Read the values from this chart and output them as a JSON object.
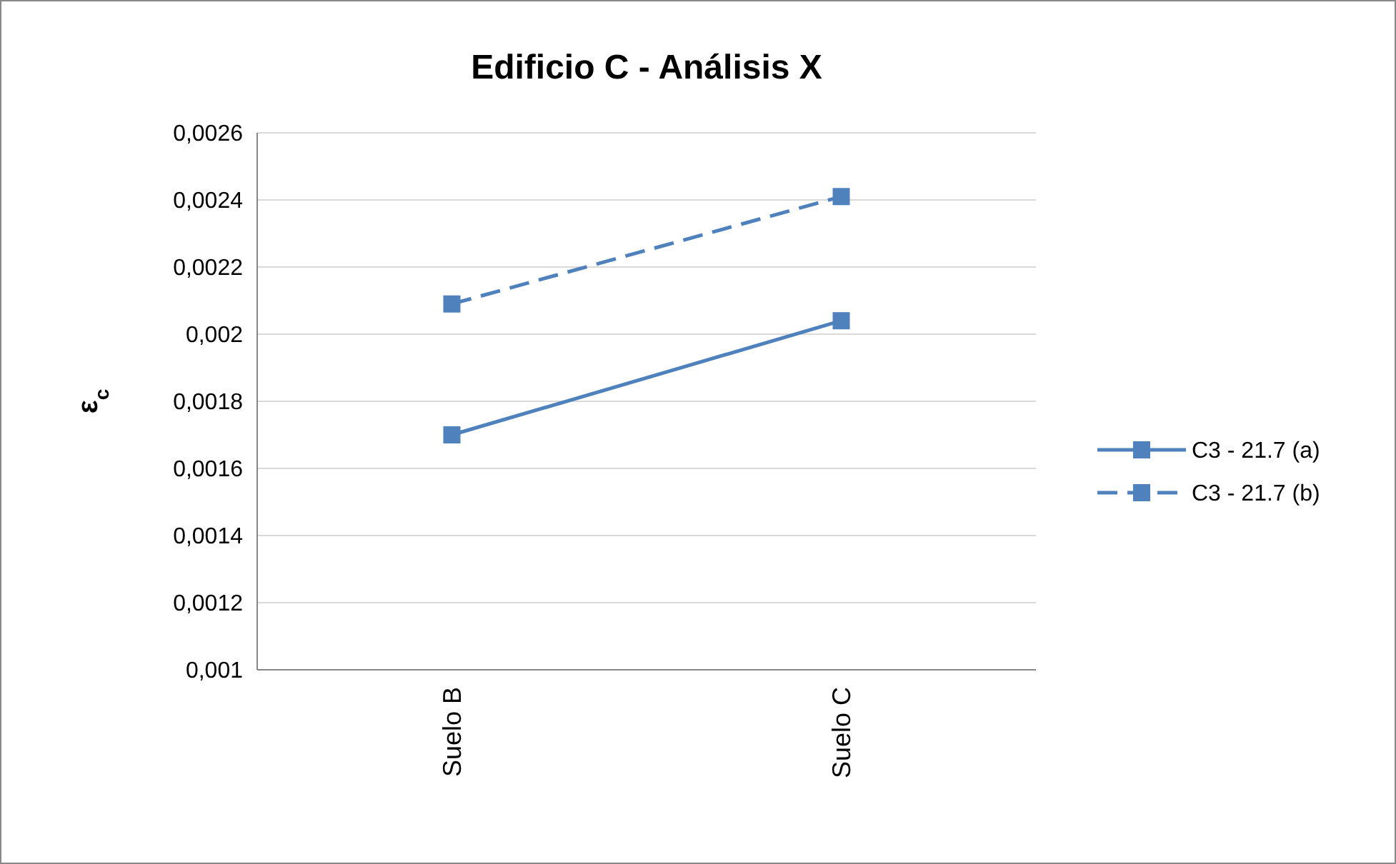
{
  "chart_data": {
    "type": "line",
    "title": "Edificio C - Análisis X",
    "ylabel": "ε$_{c}$",
    "categories": [
      "Suelo B",
      "Suelo C"
    ],
    "series": [
      {
        "name": "C3 - 21.7 (a)",
        "color": "#4f81bd",
        "values": [
          0.0017,
          0.00204
        ],
        "line_style": "solid"
      },
      {
        "name": "C3 - 21.7 (b)",
        "color": "#4f81bd",
        "values": [
          0.00209,
          0.00241
        ],
        "line_style": "dashed"
      }
    ],
    "ylim": [
      0.001,
      0.0026
    ],
    "yticks": [
      {
        "value": 0.001,
        "label": "0,001"
      },
      {
        "value": 0.0012,
        "label": "0,0012"
      },
      {
        "value": 0.0014,
        "label": "0,0014"
      },
      {
        "value": 0.0016,
        "label": "0,0016"
      },
      {
        "value": 0.0018,
        "label": "0,0018"
      },
      {
        "value": 0.002,
        "label": "0,002"
      },
      {
        "value": 0.0022,
        "label": "0,0022"
      },
      {
        "value": 0.0024,
        "label": "0,0024"
      },
      {
        "value": 0.0026,
        "label": "0,0026"
      }
    ],
    "grid": "y",
    "legend": "right",
    "marker": "square"
  }
}
